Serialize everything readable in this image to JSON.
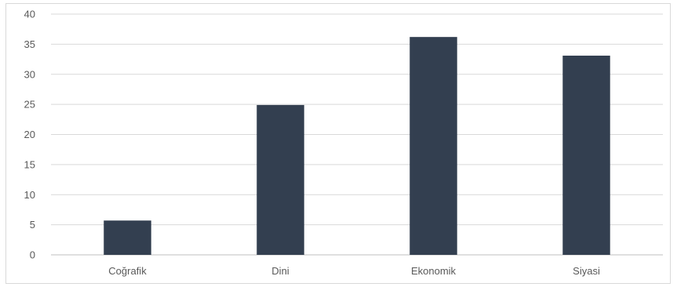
{
  "chart_data": {
    "type": "bar",
    "categories": [
      "Coğrafik",
      "Dini",
      "Ekonomik",
      "Siyasi"
    ],
    "values": [
      5.7,
      24.9,
      36.2,
      33.1
    ],
    "title": "",
    "xlabel": "",
    "ylabel": "",
    "ylim": [
      0,
      40
    ],
    "yticks": [
      0,
      5,
      10,
      15,
      20,
      25,
      30,
      35,
      40
    ],
    "grid": true,
    "legend": "none",
    "colors": {
      "bar": "#333f50",
      "grid": "#d9d9d9",
      "axis": "#bfbfbf",
      "text": "#595959"
    }
  }
}
